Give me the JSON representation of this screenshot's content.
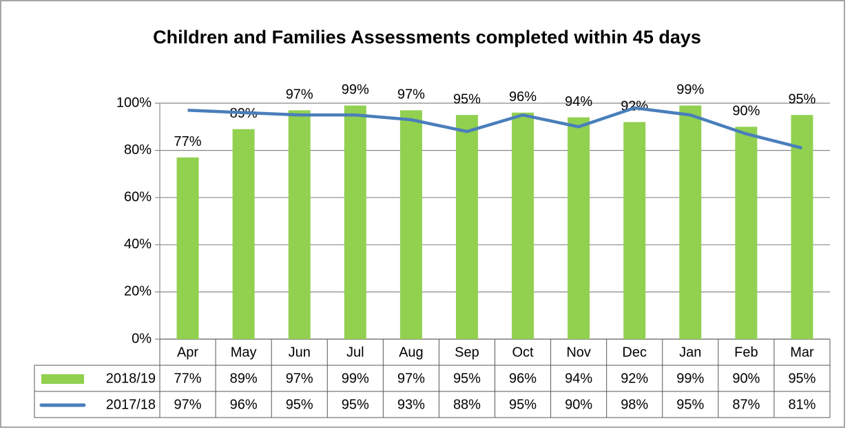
{
  "chart_data": {
    "type": "bar",
    "title": "Children and Families Assessments completed within 45 days",
    "categories": [
      "Apr",
      "May",
      "Jun",
      "Jul",
      "Aug",
      "Sep",
      "Oct",
      "Nov",
      "Dec",
      "Jan",
      "Feb",
      "Mar"
    ],
    "series": [
      {
        "name": "2018/19",
        "type": "bar",
        "color": "#92d050",
        "values": [
          77,
          89,
          97,
          99,
          97,
          95,
          96,
          94,
          92,
          99,
          90,
          95
        ],
        "value_labels": [
          "77%",
          "89%",
          "97%",
          "99%",
          "97%",
          "95%",
          "96%",
          "94%",
          "92%",
          "99%",
          "90%",
          "95%"
        ]
      },
      {
        "name": "2017/18",
        "type": "line",
        "color": "#4a7ebb",
        "values": [
          97,
          96,
          95,
          95,
          93,
          88,
          95,
          90,
          98,
          95,
          87,
          81
        ],
        "value_labels": [
          "97%",
          "96%",
          "95%",
          "95%",
          "93%",
          "88%",
          "95%",
          "90%",
          "98%",
          "95%",
          "87%",
          "81%"
        ]
      }
    ],
    "ylim": [
      0,
      100
    ],
    "yticks": [
      {
        "value": 0,
        "label": "0%"
      },
      {
        "value": 20,
        "label": "20%"
      },
      {
        "value": 40,
        "label": "40%"
      },
      {
        "value": 60,
        "label": "60%"
      },
      {
        "value": 80,
        "label": "80%"
      },
      {
        "value": 100,
        "label": "100%"
      }
    ],
    "grid": true
  }
}
